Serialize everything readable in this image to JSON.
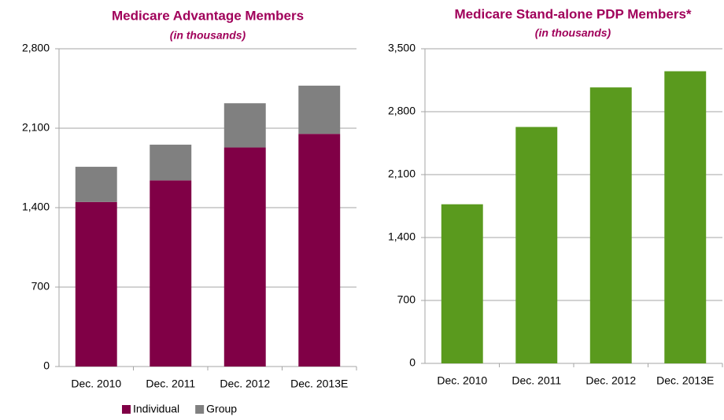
{
  "chart_data": [
    {
      "type": "bar",
      "stacked": true,
      "title": "Medicare Advantage Members",
      "subtitle": "(in thousands)",
      "categories": [
        "Dec. 2010",
        "Dec. 2011",
        "Dec. 2012",
        "Dec. 2013E"
      ],
      "series": [
        {
          "name": "Individual",
          "color": "#800046",
          "values": [
            1450,
            1640,
            1930,
            2050
          ]
        },
        {
          "name": "Group",
          "color": "#808080",
          "values": [
            310,
            315,
            390,
            425
          ]
        }
      ],
      "ylim": [
        0,
        2800
      ],
      "yticks": [
        0,
        700,
        {
          "value": 1400,
          "label": "1,400"
        },
        {
          "value": 2100,
          "label": "2,100"
        },
        {
          "value": 2800,
          "label": "2,800"
        }
      ],
      "grid": true,
      "legend": "bottom"
    },
    {
      "type": "bar",
      "title": "Medicare Stand-alone PDP Members*",
      "subtitle": "(in thousands)",
      "categories": [
        "Dec. 2010",
        "Dec. 2011",
        "Dec. 2012",
        "Dec. 2013E"
      ],
      "values": [
        1770,
        2630,
        3070,
        3250
      ],
      "color": "#5a9a1e",
      "ylim": [
        0,
        3500
      ],
      "yticks": [
        0,
        700,
        {
          "value": 1400,
          "label": "1,400"
        },
        {
          "value": 2100,
          "label": "2,100"
        },
        {
          "value": 2800,
          "label": "2,800"
        },
        {
          "value": 3500,
          "label": "3,500"
        }
      ],
      "grid": true
    }
  ]
}
